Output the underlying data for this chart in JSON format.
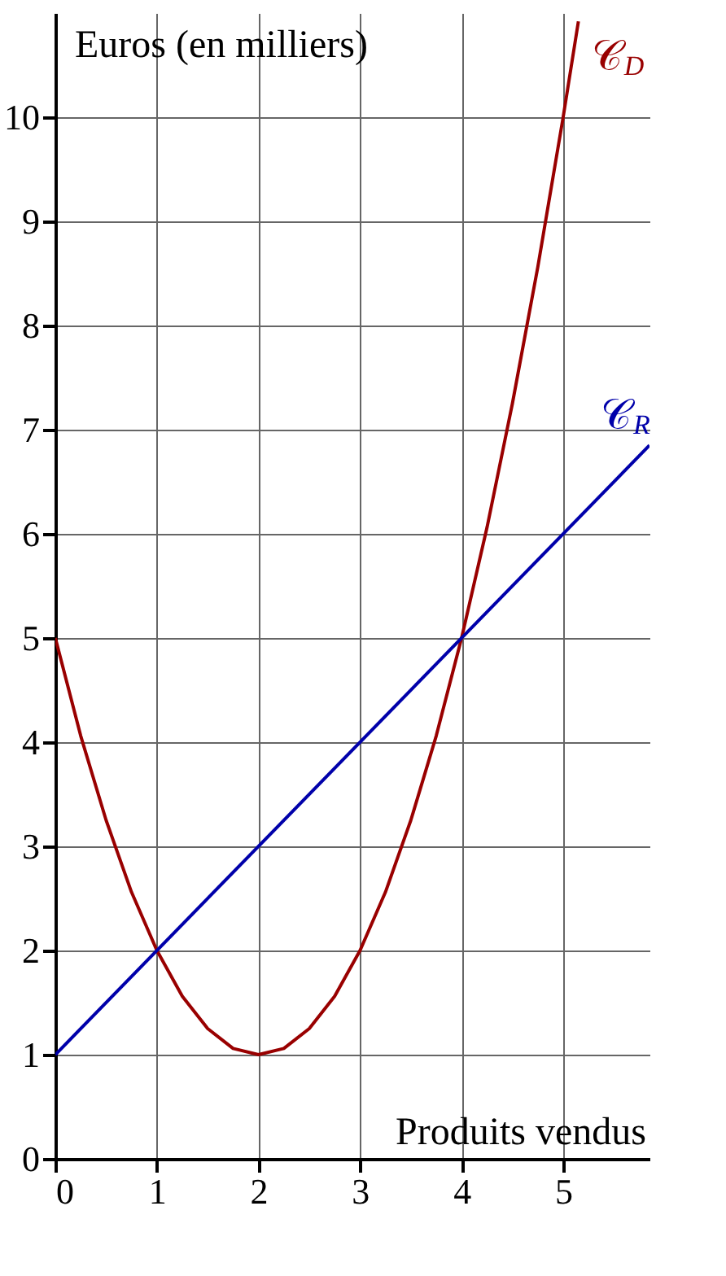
{
  "chart_data": {
    "type": "line",
    "xlabel": "Produits vendus",
    "ylabel": "Euros (en milliers)",
    "xlim": [
      0,
      5.85
    ],
    "ylim": [
      0,
      11
    ],
    "xticks": [
      0,
      1,
      2,
      3,
      4,
      5
    ],
    "yticks": [
      0,
      1,
      2,
      3,
      4,
      5,
      6,
      7,
      8,
      9,
      10
    ],
    "grid": true,
    "legend": false,
    "marker": "none",
    "line_style": "solid",
    "series": [
      {
        "name": "𝒞$_{D}$",
        "color": "#990000",
        "x": [
          0,
          0.25,
          0.5,
          0.75,
          1,
          1.25,
          1.5,
          1.75,
          2,
          2.25,
          2.5,
          2.75,
          3,
          3.25,
          3.5,
          3.75,
          4,
          4.25,
          4.5,
          4.75,
          5,
          5.15
        ],
        "values": [
          5,
          4.06,
          3.25,
          2.56,
          2,
          1.56,
          1.25,
          1.06,
          1,
          1.06,
          1.25,
          1.56,
          2,
          2.56,
          3.25,
          4.06,
          5,
          6.06,
          7.25,
          8.56,
          10,
          10.92
        ]
      },
      {
        "name": "𝒞$_{R}$",
        "color": "#0000aa",
        "x": [
          0,
          5.85
        ],
        "values": [
          1,
          6.85
        ]
      }
    ]
  }
}
